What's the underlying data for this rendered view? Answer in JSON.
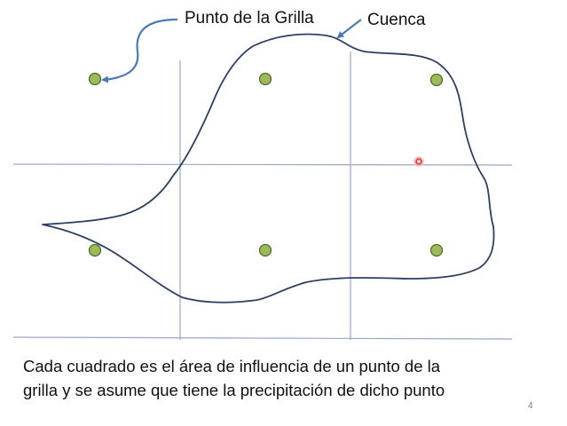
{
  "annotations": {
    "grid_point_label": "Punto de la Grilla",
    "basin_label": "Cuenca"
  },
  "caption": {
    "line1": "Cada cuadrado es el área de influencia de un punto de la",
    "line2": "grilla y se asume que tiene la precipitación de dicho punto"
  },
  "page_number": "4",
  "colors": {
    "grid_line": "#9aa8c4",
    "grid_point_fill": "#9bbb59",
    "grid_point_stroke": "#556b2f",
    "basin_outline": "#2e3f66",
    "arrow": "#4a7ab5",
    "cursor_ring": "#e03030"
  }
}
